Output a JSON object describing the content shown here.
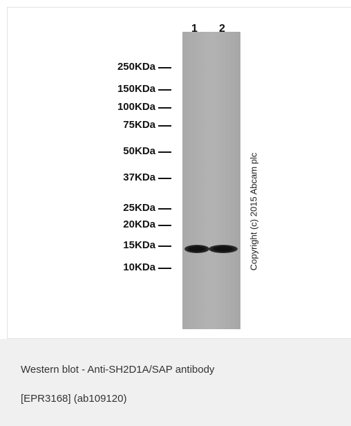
{
  "figure": {
    "lanes": [
      "1",
      "2"
    ],
    "markers": [
      "250KDa",
      "150KDa",
      "100KDa",
      "75KDa",
      "50KDa",
      "37KDa",
      "25KDa",
      "20KDa",
      "15KDa",
      "10KDa"
    ],
    "copyright": "Copyright (c) 2015 Abcam plc"
  },
  "caption": {
    "line1": "Western blot - Anti-SH2D1A/SAP antibody",
    "line2": "[EPR3168] (ab109120)"
  }
}
